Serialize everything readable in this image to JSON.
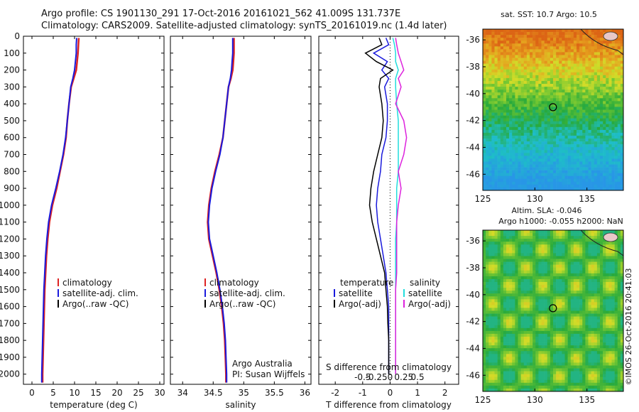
{
  "header": {
    "line1": "Argo profile: CS 1901130_291 17-Oct-2016 20161021_562 41.009S 131.737E",
    "line2": "Climatology: CARS2009. Satellite-adjusted climatology: synTS_20161019.nc (1.4d later)"
  },
  "colors": {
    "climatology": "#dd2222",
    "satellite": "#1a1adc",
    "argo": "#000000",
    "sal_satellite": "#22dddd",
    "sal_argo": "#dd22dd"
  },
  "legend_common": [
    "climatology",
    "satellite-adj. clim.",
    "Argo(..raw -QC)"
  ],
  "credits": {
    "line1": "Argo Australia",
    "line2": "PI: Susan Wijffels"
  },
  "map1": {
    "title": "sat. SST: 10.7  Argo: 10.5"
  },
  "map2": {
    "title1": "Altim. SLA: -0.046",
    "title2": "Argo h1000: -0.055  h2000: NaN"
  },
  "imos_stamp": "©IMOS 26-Oct-2016 20:41:03",
  "chart_data": [
    {
      "type": "line",
      "xlabel": "temperature (deg C)",
      "xticks": [
        "0",
        "5",
        "10",
        "15",
        "20",
        "25",
        "30"
      ],
      "xlim": [
        -2,
        31
      ],
      "yticks": [
        "0",
        "100",
        "200",
        "300",
        "400",
        "500",
        "600",
        "700",
        "800",
        "900",
        "1000",
        "1100",
        "1200",
        "1300",
        "1400",
        "1500",
        "1600",
        "1700",
        "1800",
        "1900",
        "2000"
      ],
      "ylim": [
        2060,
        0
      ],
      "y": [
        10,
        50,
        100,
        150,
        200,
        250,
        300,
        400,
        500,
        600,
        700,
        800,
        900,
        1000,
        1100,
        1200,
        1300,
        1400,
        1500,
        1600,
        1700,
        1800,
        1900,
        2000,
        2050
      ],
      "series": [
        {
          "name": "climatology",
          "values": [
            11.0,
            10.9,
            10.8,
            10.6,
            10.4,
            9.8,
            9.2,
            8.7,
            8.3,
            8.0,
            7.4,
            6.6,
            5.8,
            4.8,
            4.1,
            3.7,
            3.4,
            3.2,
            3.0,
            2.9,
            2.8,
            2.7,
            2.6,
            2.5,
            2.5
          ]
        },
        {
          "name": "satellite-adj. clim.",
          "values": [
            10.5,
            10.4,
            10.4,
            10.2,
            10.0,
            9.6,
            9.1,
            8.7,
            8.3,
            7.9,
            7.3,
            6.5,
            5.6,
            4.6,
            3.9,
            3.5,
            3.2,
            3.0,
            2.8,
            2.7,
            2.6,
            2.5,
            2.4,
            2.3,
            2.3
          ]
        }
      ],
      "legend": [
        "climatology",
        "satellite-adj. clim.",
        "Argo(..raw -QC)"
      ]
    },
    {
      "type": "line",
      "xlabel": "salinity",
      "xticks": [
        "34",
        "34.5",
        "35",
        "35.5",
        "36"
      ],
      "xlim": [
        33.8,
        36.1
      ],
      "ylim": [
        2060,
        0
      ],
      "y": [
        10,
        50,
        100,
        150,
        200,
        250,
        300,
        400,
        500,
        600,
        700,
        800,
        900,
        1000,
        1100,
        1200,
        1300,
        1400,
        1500,
        1600,
        1700,
        1800,
        1900,
        2000,
        2050
      ],
      "series": [
        {
          "name": "climatology",
          "values": [
            34.84,
            34.84,
            34.84,
            34.83,
            34.82,
            34.79,
            34.75,
            34.72,
            34.69,
            34.66,
            34.6,
            34.53,
            34.47,
            34.43,
            34.41,
            34.43,
            34.49,
            34.55,
            34.6,
            34.64,
            34.67,
            34.69,
            34.7,
            34.71,
            34.71
          ]
        },
        {
          "name": "satellite-adj. clim.",
          "values": [
            34.82,
            34.82,
            34.82,
            34.81,
            34.8,
            34.78,
            34.75,
            34.72,
            34.69,
            34.66,
            34.61,
            34.54,
            34.48,
            34.44,
            34.42,
            34.44,
            34.5,
            34.56,
            34.61,
            34.65,
            34.68,
            34.7,
            34.71,
            34.72,
            34.72
          ]
        }
      ],
      "legend": [
        "climatology",
        "satellite-adj. clim.",
        "Argo(..raw -QC)"
      ]
    },
    {
      "type": "line",
      "xlabel": "T difference from climatology",
      "xticks": [
        "-2",
        "-1",
        "0",
        "1",
        "2"
      ],
      "xlim": [
        -2.6,
        2.5
      ],
      "secondary_xlabel": "S difference from climatology",
      "secondary_xticks": [
        "-0.5",
        "-0.25",
        "0",
        "0.25",
        "0.5"
      ],
      "ylim": [
        2060,
        0
      ],
      "y": [
        10,
        50,
        100,
        150,
        200,
        250,
        300,
        400,
        500,
        600,
        700,
        800,
        900,
        1000,
        1100,
        1200,
        1300,
        1400,
        1500,
        1600,
        1700,
        1800,
        1900,
        2000
      ],
      "series": [
        {
          "name": "temperature satellite",
          "values": [
            -0.15,
            -0.05,
            -0.6,
            -0.1,
            -0.3,
            -0.05,
            -0.2,
            -0.1,
            -0.1,
            -0.15,
            -0.3,
            -0.35,
            -0.45,
            -0.5,
            -0.45,
            -0.35,
            -0.25,
            -0.15,
            -0.1,
            -0.05,
            -0.05,
            -0.05,
            -0.05,
            -0.05
          ]
        },
        {
          "name": "temperature Argo(-adj)",
          "values": [
            -0.4,
            -0.3,
            -0.9,
            -0.5,
            0.1,
            -0.35,
            -0.4,
            -0.3,
            -0.25,
            -0.3,
            -0.45,
            -0.6,
            -0.7,
            -0.75,
            -0.65,
            -0.5,
            -0.35,
            -0.2,
            -0.15,
            -0.1,
            -0.08,
            -0.05,
            -0.05,
            -0.05
          ]
        },
        {
          "name": "salinity satellite",
          "values": [
            0.05,
            0.08,
            0.1,
            0.1,
            0.15,
            0.1,
            0.1,
            0.12,
            0.15,
            0.15,
            0.15,
            0.15,
            0.12,
            0.12,
            0.12,
            0.1,
            0.1,
            0.1,
            0.1,
            0.1,
            0.1,
            0.1,
            0.1,
            0.1
          ]
        },
        {
          "name": "salinity Argo(-adj)",
          "values": [
            0.1,
            0.12,
            0.15,
            0.2,
            0.25,
            0.15,
            0.2,
            0.1,
            0.25,
            0.3,
            0.25,
            0.15,
            0.2,
            0.15,
            0.12,
            0.12,
            0.12,
            0.12,
            0.1,
            0.1,
            0.1,
            0.1,
            0.1,
            0.1
          ]
        }
      ],
      "legend_groups": [
        {
          "title": "temperature",
          "items": [
            "satellite",
            "Argo(-adj)"
          ]
        },
        {
          "title": "salinity",
          "items": [
            "satellite",
            "Argo(-adj)"
          ]
        }
      ]
    },
    {
      "type": "heatmap",
      "title": "sat. SST: 10.7  Argo: 10.5",
      "xticks": [
        "125",
        "130",
        "135"
      ],
      "xlim": [
        125,
        138.5
      ],
      "yticks": [
        "-36",
        "-38",
        "-40",
        "-42",
        "-44",
        "-46"
      ],
      "ylim": [
        -47.2,
        -35.2
      ],
      "marker": {
        "lon": 131.737,
        "lat": -41.009
      }
    },
    {
      "type": "heatmap",
      "title": "Altim. SLA: -0.046",
      "xticks": [
        "125",
        "130",
        "135"
      ],
      "xlim": [
        125,
        138.5
      ],
      "yticks": [
        "-36",
        "-38",
        "-40",
        "-42",
        "-44",
        "-46"
      ],
      "ylim": [
        -47.2,
        -35.2
      ],
      "marker": {
        "lon": 131.737,
        "lat": -41.009
      }
    }
  ]
}
